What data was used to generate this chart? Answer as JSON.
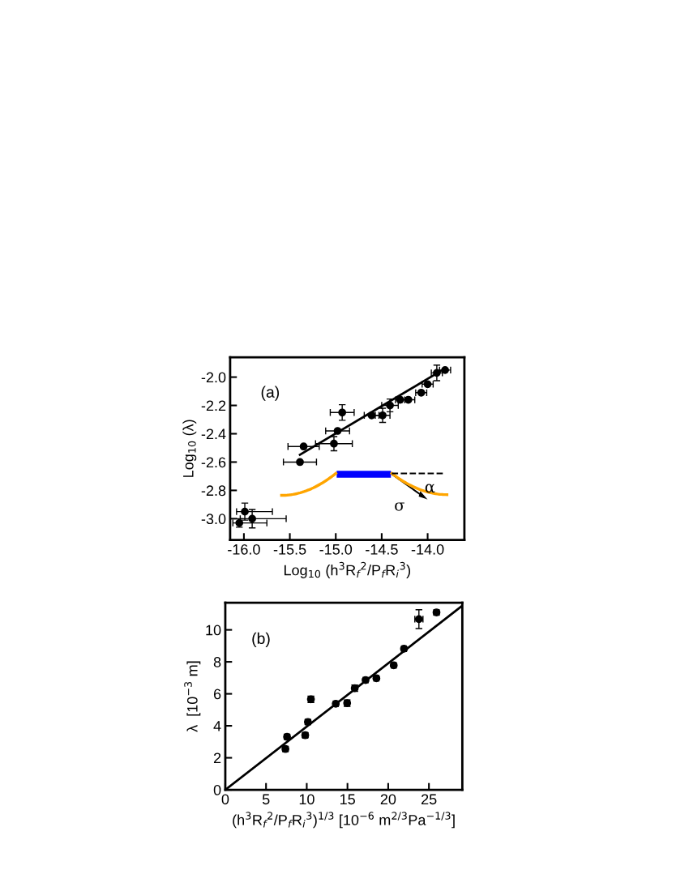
{
  "chart_data": [
    {
      "type": "scatter",
      "xlabel": "Log$_{10}$ (h$^{3}$R$_{f}$$^{2}$/P$_{f}$R$_{i}$$^{3}$)",
      "ylabel": "Log$_{10}$ (λ)",
      "annotations": [
        "(a)",
        "α",
        "σ"
      ],
      "xlim": [
        -16.15,
        -13.6
      ],
      "ylim": [
        -3.15,
        -1.86
      ],
      "xticks": [
        {
          "value": -16,
          "label": "-16.0"
        },
        -15.5,
        {
          "value": -15,
          "label": "-15.0"
        },
        -14.5,
        {
          "value": -14,
          "label": "-14.0"
        }
      ],
      "yticks": [
        {
          "value": -3,
          "label": "-3.0"
        },
        -2.8,
        -2.6,
        -2.4,
        -2.2,
        {
          "value": -2,
          "label": "-2.0"
        }
      ],
      "grid": false,
      "series": [
        {
          "marker": "circle",
          "color": "#000000",
          "x": [
            -16.05,
            -15.99,
            -15.91,
            -15.39,
            -15.35,
            -15.02,
            -14.98,
            -14.93,
            -14.61,
            -14.49,
            -14.41,
            -14.3,
            -14.21,
            -14.07,
            -14.0,
            -13.9,
            -13.81
          ],
          "values": [
            -3.03,
            -2.95,
            -3.0,
            -2.6,
            -2.49,
            -2.47,
            -2.38,
            -2.25,
            -2.27,
            -2.27,
            -2.2,
            -2.16,
            -2.16,
            -2.11,
            -2.05,
            -1.97,
            -1.95
          ],
          "errors": [
            0.03,
            0.06,
            0.065,
            null,
            null,
            0.05,
            null,
            0.055,
            null,
            0.05,
            0.045,
            null,
            null,
            null,
            null,
            0.055,
            null
          ],
          "xerrors": [
            [
              -16.12,
              -15.75
            ],
            [
              -16.08,
              -15.69
            ],
            [
              -16.04,
              -15.54
            ],
            0.18,
            0.17,
            0.2,
            0.13,
            0.13,
            0.08,
            0.08,
            0.09,
            0.05,
            0.07,
            0.06,
            0.06,
            0.06,
            0.06
          ]
        },
        {
          "type": "line",
          "color": "#000000",
          "x": [
            -15.39,
            -13.84
          ],
          "values": [
            -2.548,
            -1.95
          ]
        }
      ]
    },
    {
      "type": "scatter",
      "xlabel": "(h$^{3}$R$_{f}$$^{2}$/P$_{f}$R$_{i}$$^{3}$)$^{1/3}$ [10$^{−6}$ m$^{2/3}$Pa$^{−1/3}$]",
      "ylabel": "λ  [10$^{−3}$ m]",
      "annotations": [
        "(b)"
      ],
      "xlim": [
        0,
        29.1
      ],
      "ylim": [
        0,
        11.7
      ],
      "xticks": [
        0,
        5,
        10,
        15,
        20,
        25
      ],
      "yticks": [
        0,
        2,
        4,
        6,
        8,
        10
      ],
      "grid": false,
      "series": [
        {
          "marker": "circle",
          "color": "#000000",
          "x": [
            7.38,
            7.58,
            9.81,
            10.14,
            10.51,
            13.56,
            14.96,
            15.89,
            17.22,
            18.55,
            20.68,
            21.94,
            23.77,
            25.93
          ],
          "values": [
            2.55,
            3.31,
            3.41,
            4.24,
            5.66,
            5.38,
            5.42,
            6.35,
            6.86,
            6.97,
            7.78,
            8.82,
            10.67,
            11.09
          ],
          "errors": [
            0.15,
            0.15,
            0.15,
            0.15,
            0.2,
            0.1,
            0.2,
            0.2,
            0.1,
            0.1,
            0.1,
            0.1,
            0.59,
            0.15
          ],
          "xerrors": [
            0.3,
            0.3,
            0.3,
            0.3,
            0.3,
            0.3,
            0.3,
            0.3,
            0.3,
            0.3,
            0.3,
            0.3,
            0.5,
            0.3
          ]
        },
        {
          "type": "line",
          "color": "#000000",
          "x": [
            0,
            29.1
          ],
          "values": [
            0,
            11.51
          ]
        }
      ]
    }
  ]
}
